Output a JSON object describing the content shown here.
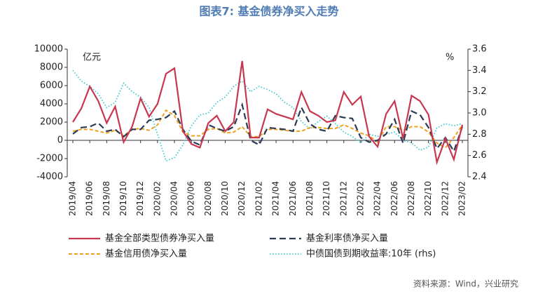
{
  "chart_data": {
    "type": "line",
    "title": "图表7:  基金债券净买入走势",
    "y_unit": "亿元",
    "y2_unit": "%",
    "source": "资料来源：Wind，兴业研究",
    "categories": [
      "2019/04",
      null,
      "2019/06",
      null,
      "2019/08",
      null,
      "2019/10",
      null,
      "2019/12",
      null,
      "2020/02",
      null,
      "2020/04",
      null,
      "2020/06",
      null,
      "2020/08",
      null,
      "2020/10",
      null,
      "2020/12",
      null,
      "2021/02",
      null,
      "2021/04",
      null,
      "2021/06",
      null,
      "2021/08",
      null,
      "2021/10",
      null,
      "2021/12",
      null,
      "2022/02",
      null,
      "2022/04",
      null,
      "2022/06",
      null,
      "2022/08",
      null,
      "2022/10",
      null,
      "2022/12",
      null,
      "2023/02"
    ],
    "ylim": [
      -4000,
      10000
    ],
    "yticks": [
      -4000,
      -2000,
      0,
      2000,
      4000,
      6000,
      8000,
      10000
    ],
    "y2lim": [
      2.4,
      3.6
    ],
    "y2ticks": [
      2.4,
      2.6,
      2.8,
      {
        "value": 3,
        "label": "3.0"
      },
      3.2,
      3.4,
      3.6
    ],
    "series": [
      {
        "name": "基金全部类型债券净买入量",
        "color": "#c8374f",
        "style": "solid",
        "values": [
          2000,
          3500,
          5900,
          4300,
          1900,
          3700,
          -200,
          1500,
          4600,
          2600,
          4000,
          7300,
          7900,
          1000,
          -400,
          -800,
          1900,
          2700,
          1000,
          2000,
          8700,
          300,
          300,
          3400,
          2900,
          2600,
          2300,
          5300,
          3200,
          2700,
          2000,
          2200,
          5300,
          3900,
          4800,
          400,
          -700,
          2900,
          4300,
          200,
          4900,
          4300,
          2800,
          -2400,
          200,
          -2100,
          1700
        ]
      },
      {
        "name": "基金利率债净买入量",
        "color": "#2b3a55",
        "style": "dash",
        "values": [
          700,
          1400,
          1500,
          1900,
          1000,
          1200,
          400,
          1200,
          1200,
          2200,
          2300,
          2500,
          3200,
          1200,
          -100,
          -500,
          1700,
          1300,
          1000,
          1500,
          3900,
          0,
          -500,
          1400,
          1300,
          1200,
          1000,
          3600,
          1800,
          1200,
          1000,
          2700,
          2500,
          2400,
          300,
          -200,
          0,
          700,
          2300,
          -300,
          3200,
          2800,
          1400,
          -900,
          300,
          -1200,
          1500
        ]
      },
      {
        "name": "基金信用债净买入量",
        "color": "#f0a020",
        "style": "dash-short",
        "values": [
          1000,
          1200,
          1200,
          1000,
          800,
          1100,
          500,
          1200,
          1300,
          1100,
          1700,
          3300,
          2700,
          900,
          500,
          500,
          1200,
          1300,
          800,
          900,
          1500,
          400,
          400,
          1200,
          1200,
          1100,
          1000,
          1000,
          1400,
          1400,
          1300,
          1300,
          1700,
          1300,
          800,
          500,
          -200,
          1500,
          1500,
          1100,
          1500,
          1500,
          900,
          -300,
          -800,
          300,
          1700
        ]
      },
      {
        "name": "中债国债到期收益率:10年 (rhs)",
        "color": "#40c8d0",
        "style": "dot",
        "axis": "y2",
        "values": [
          3.4,
          3.3,
          3.25,
          3.18,
          3.05,
          3.1,
          3.28,
          3.2,
          3.15,
          3.05,
          2.8,
          2.55,
          2.58,
          2.7,
          2.88,
          2.98,
          3.0,
          3.1,
          3.15,
          3.25,
          3.3,
          3.2,
          3.25,
          3.22,
          3.18,
          3.1,
          3.05,
          2.92,
          2.85,
          2.92,
          2.97,
          2.9,
          2.82,
          2.78,
          2.72,
          2.8,
          2.78,
          2.8,
          2.82,
          2.74,
          2.72,
          2.65,
          2.68,
          2.86,
          2.9,
          2.88,
          2.9
        ]
      }
    ]
  }
}
